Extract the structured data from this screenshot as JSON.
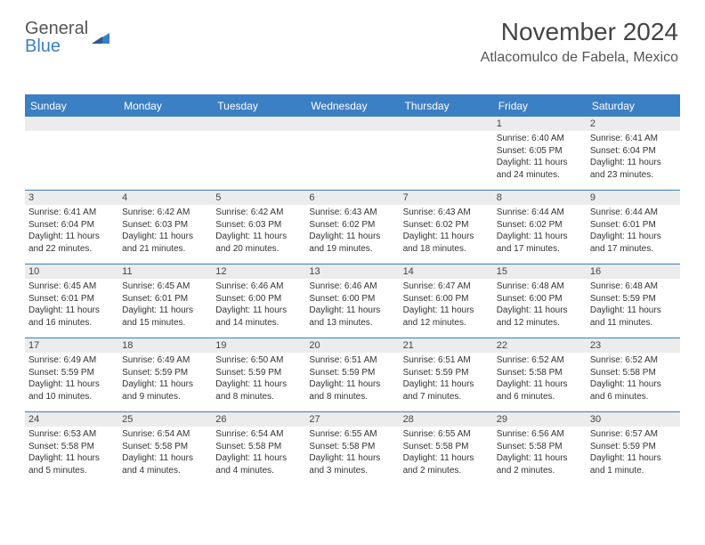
{
  "logo": {
    "text_gray": "General",
    "text_blue": "Blue"
  },
  "header": {
    "month": "November 2024",
    "location": "Atlacomulco de Fabela, Mexico"
  },
  "colors": {
    "accent": "#3b7fc4",
    "header_bg": "#3b7fc4",
    "date_bar": "#ececec",
    "text": "#333333"
  },
  "day_names": [
    "Sunday",
    "Monday",
    "Tuesday",
    "Wednesday",
    "Thursday",
    "Friday",
    "Saturday"
  ],
  "weeks": [
    [
      {
        "empty": true
      },
      {
        "empty": true
      },
      {
        "empty": true
      },
      {
        "empty": true
      },
      {
        "empty": true
      },
      {
        "date": "1",
        "sunrise": "Sunrise: 6:40 AM",
        "sunset": "Sunset: 6:05 PM",
        "daylight": "Daylight: 11 hours and 24 minutes."
      },
      {
        "date": "2",
        "sunrise": "Sunrise: 6:41 AM",
        "sunset": "Sunset: 6:04 PM",
        "daylight": "Daylight: 11 hours and 23 minutes."
      }
    ],
    [
      {
        "date": "3",
        "sunrise": "Sunrise: 6:41 AM",
        "sunset": "Sunset: 6:04 PM",
        "daylight": "Daylight: 11 hours and 22 minutes."
      },
      {
        "date": "4",
        "sunrise": "Sunrise: 6:42 AM",
        "sunset": "Sunset: 6:03 PM",
        "daylight": "Daylight: 11 hours and 21 minutes."
      },
      {
        "date": "5",
        "sunrise": "Sunrise: 6:42 AM",
        "sunset": "Sunset: 6:03 PM",
        "daylight": "Daylight: 11 hours and 20 minutes."
      },
      {
        "date": "6",
        "sunrise": "Sunrise: 6:43 AM",
        "sunset": "Sunset: 6:02 PM",
        "daylight": "Daylight: 11 hours and 19 minutes."
      },
      {
        "date": "7",
        "sunrise": "Sunrise: 6:43 AM",
        "sunset": "Sunset: 6:02 PM",
        "daylight": "Daylight: 11 hours and 18 minutes."
      },
      {
        "date": "8",
        "sunrise": "Sunrise: 6:44 AM",
        "sunset": "Sunset: 6:02 PM",
        "daylight": "Daylight: 11 hours and 17 minutes."
      },
      {
        "date": "9",
        "sunrise": "Sunrise: 6:44 AM",
        "sunset": "Sunset: 6:01 PM",
        "daylight": "Daylight: 11 hours and 17 minutes."
      }
    ],
    [
      {
        "date": "10",
        "sunrise": "Sunrise: 6:45 AM",
        "sunset": "Sunset: 6:01 PM",
        "daylight": "Daylight: 11 hours and 16 minutes."
      },
      {
        "date": "11",
        "sunrise": "Sunrise: 6:45 AM",
        "sunset": "Sunset: 6:01 PM",
        "daylight": "Daylight: 11 hours and 15 minutes."
      },
      {
        "date": "12",
        "sunrise": "Sunrise: 6:46 AM",
        "sunset": "Sunset: 6:00 PM",
        "daylight": "Daylight: 11 hours and 14 minutes."
      },
      {
        "date": "13",
        "sunrise": "Sunrise: 6:46 AM",
        "sunset": "Sunset: 6:00 PM",
        "daylight": "Daylight: 11 hours and 13 minutes."
      },
      {
        "date": "14",
        "sunrise": "Sunrise: 6:47 AM",
        "sunset": "Sunset: 6:00 PM",
        "daylight": "Daylight: 11 hours and 12 minutes."
      },
      {
        "date": "15",
        "sunrise": "Sunrise: 6:48 AM",
        "sunset": "Sunset: 6:00 PM",
        "daylight": "Daylight: 11 hours and 12 minutes."
      },
      {
        "date": "16",
        "sunrise": "Sunrise: 6:48 AM",
        "sunset": "Sunset: 5:59 PM",
        "daylight": "Daylight: 11 hours and 11 minutes."
      }
    ],
    [
      {
        "date": "17",
        "sunrise": "Sunrise: 6:49 AM",
        "sunset": "Sunset: 5:59 PM",
        "daylight": "Daylight: 11 hours and 10 minutes."
      },
      {
        "date": "18",
        "sunrise": "Sunrise: 6:49 AM",
        "sunset": "Sunset: 5:59 PM",
        "daylight": "Daylight: 11 hours and 9 minutes."
      },
      {
        "date": "19",
        "sunrise": "Sunrise: 6:50 AM",
        "sunset": "Sunset: 5:59 PM",
        "daylight": "Daylight: 11 hours and 8 minutes."
      },
      {
        "date": "20",
        "sunrise": "Sunrise: 6:51 AM",
        "sunset": "Sunset: 5:59 PM",
        "daylight": "Daylight: 11 hours and 8 minutes."
      },
      {
        "date": "21",
        "sunrise": "Sunrise: 6:51 AM",
        "sunset": "Sunset: 5:59 PM",
        "daylight": "Daylight: 11 hours and 7 minutes."
      },
      {
        "date": "22",
        "sunrise": "Sunrise: 6:52 AM",
        "sunset": "Sunset: 5:58 PM",
        "daylight": "Daylight: 11 hours and 6 minutes."
      },
      {
        "date": "23",
        "sunrise": "Sunrise: 6:52 AM",
        "sunset": "Sunset: 5:58 PM",
        "daylight": "Daylight: 11 hours and 6 minutes."
      }
    ],
    [
      {
        "date": "24",
        "sunrise": "Sunrise: 6:53 AM",
        "sunset": "Sunset: 5:58 PM",
        "daylight": "Daylight: 11 hours and 5 minutes."
      },
      {
        "date": "25",
        "sunrise": "Sunrise: 6:54 AM",
        "sunset": "Sunset: 5:58 PM",
        "daylight": "Daylight: 11 hours and 4 minutes."
      },
      {
        "date": "26",
        "sunrise": "Sunrise: 6:54 AM",
        "sunset": "Sunset: 5:58 PM",
        "daylight": "Daylight: 11 hours and 4 minutes."
      },
      {
        "date": "27",
        "sunrise": "Sunrise: 6:55 AM",
        "sunset": "Sunset: 5:58 PM",
        "daylight": "Daylight: 11 hours and 3 minutes."
      },
      {
        "date": "28",
        "sunrise": "Sunrise: 6:55 AM",
        "sunset": "Sunset: 5:58 PM",
        "daylight": "Daylight: 11 hours and 2 minutes."
      },
      {
        "date": "29",
        "sunrise": "Sunrise: 6:56 AM",
        "sunset": "Sunset: 5:58 PM",
        "daylight": "Daylight: 11 hours and 2 minutes."
      },
      {
        "date": "30",
        "sunrise": "Sunrise: 6:57 AM",
        "sunset": "Sunset: 5:59 PM",
        "daylight": "Daylight: 11 hours and 1 minute."
      }
    ]
  ]
}
